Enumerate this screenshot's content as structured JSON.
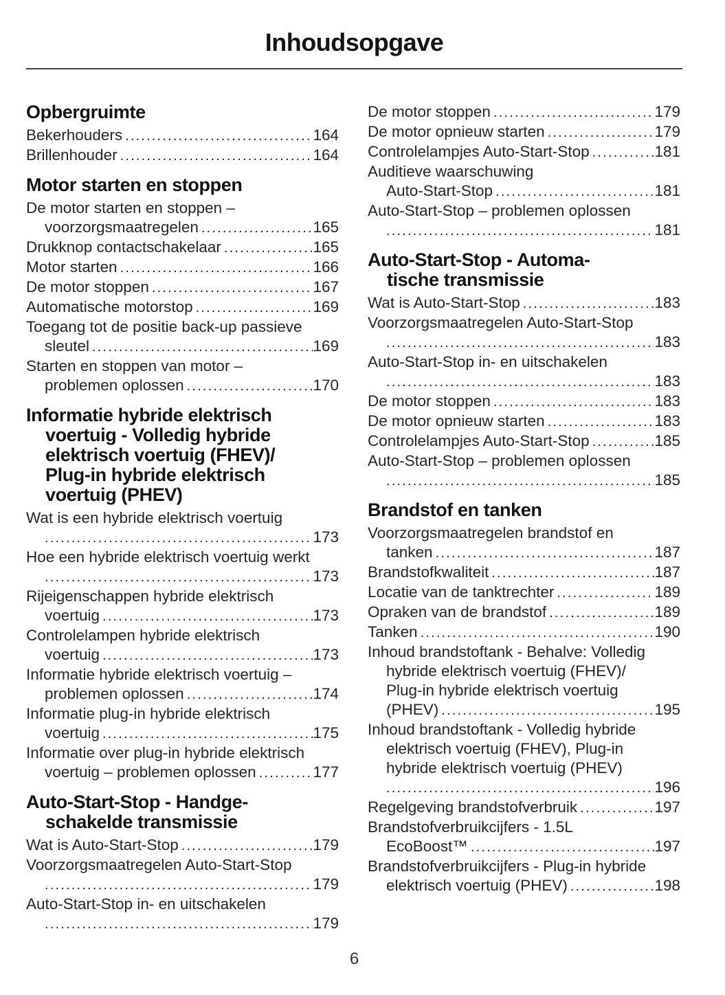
{
  "header": {
    "title": "Inhoudsopgave"
  },
  "footer": {
    "page_number": "6"
  },
  "colors": {
    "text": "#262626",
    "heading": "#141414",
    "rule": "#444444",
    "background": "#ffffff"
  },
  "toc": {
    "columns": [
      {
        "sections": [
          {
            "heading_lines": [
              "Opbergruimte"
            ],
            "entries": [
              {
                "lines": [
                  "Bekerhouders"
                ],
                "page": "164"
              },
              {
                "lines": [
                  "Brillenhouder"
                ],
                "page": "164"
              }
            ]
          },
          {
            "heading_lines": [
              "Motor starten en stoppen"
            ],
            "entries": [
              {
                "lines": [
                  "De motor starten en stoppen –",
                  "voorzorgsmaatregelen"
                ],
                "page": "165"
              },
              {
                "lines": [
                  "Drukknop contactschakelaar"
                ],
                "page": "165"
              },
              {
                "lines": [
                  "Motor starten"
                ],
                "page": "166"
              },
              {
                "lines": [
                  "De motor stoppen"
                ],
                "page": "167"
              },
              {
                "lines": [
                  "Automatische motorstop"
                ],
                "page": "169"
              },
              {
                "lines": [
                  "Toegang tot de positie back-up passieve",
                  "sleutel"
                ],
                "page": "169"
              },
              {
                "lines": [
                  "Starten en stoppen van motor –",
                  "problemen oplossen"
                ],
                "page": "170"
              }
            ]
          },
          {
            "heading_lines": [
              "Informatie hybride elektrisch",
              "voertuig - Volledig hybride",
              "elektrisch voertuig (FHEV)/",
              "Plug-in hybride elektrisch",
              "voertuig (PHEV)"
            ],
            "entries": [
              {
                "lines": [
                  "Wat is een hybride elektrisch voertuig",
                  ""
                ],
                "page": "173"
              },
              {
                "lines": [
                  "Hoe een hybride elektrisch voertuig werkt",
                  ""
                ],
                "page": "173"
              },
              {
                "lines": [
                  "Rijeigenschappen hybride elektrisch",
                  "voertuig"
                ],
                "page": "173"
              },
              {
                "lines": [
                  "Controlelampen hybride elektrisch",
                  "voertuig"
                ],
                "page": "173"
              },
              {
                "lines": [
                  "Informatie hybride elektrisch voertuig –",
                  "problemen oplossen"
                ],
                "page": "174"
              },
              {
                "lines": [
                  "Informatie plug-in hybride elektrisch",
                  "voertuig"
                ],
                "page": "175"
              },
              {
                "lines": [
                  "Informatie over plug-in hybride elektrisch",
                  "voertuig – problemen oplossen"
                ],
                "page": "177"
              }
            ]
          },
          {
            "heading_lines": [
              "Auto-Start-Stop - Handge-",
              "schakelde transmissie"
            ],
            "entries": [
              {
                "lines": [
                  "Wat is Auto-Start-Stop"
                ],
                "page": "179"
              },
              {
                "lines": [
                  "Voorzorgsmaatregelen Auto-Start-Stop",
                  ""
                ],
                "page": "179"
              },
              {
                "lines": [
                  "Auto-Start-Stop in- en uitschakelen",
                  ""
                ],
                "page": "179"
              }
            ]
          }
        ]
      },
      {
        "sections": [
          {
            "heading_lines": [],
            "entries": [
              {
                "lines": [
                  "De motor stoppen"
                ],
                "page": "179"
              },
              {
                "lines": [
                  "De motor opnieuw starten"
                ],
                "page": "179"
              },
              {
                "lines": [
                  "Controlelampjes Auto-Start-Stop"
                ],
                "page": "181"
              },
              {
                "lines": [
                  "Auditieve waarschuwing",
                  "Auto-Start-Stop"
                ],
                "page": "181"
              },
              {
                "lines": [
                  "Auto-Start-Stop – problemen oplossen",
                  ""
                ],
                "page": "181"
              }
            ]
          },
          {
            "heading_lines": [
              "Auto-Start-Stop - Automa-",
              "tische transmissie"
            ],
            "entries": [
              {
                "lines": [
                  "Wat is Auto-Start-Stop"
                ],
                "page": "183"
              },
              {
                "lines": [
                  "Voorzorgsmaatregelen Auto-Start-Stop",
                  ""
                ],
                "page": "183"
              },
              {
                "lines": [
                  "Auto-Start-Stop in- en uitschakelen",
                  ""
                ],
                "page": "183"
              },
              {
                "lines": [
                  "De motor stoppen"
                ],
                "page": "183"
              },
              {
                "lines": [
                  "De motor opnieuw starten"
                ],
                "page": "183"
              },
              {
                "lines": [
                  "Controlelampjes Auto-Start-Stop"
                ],
                "page": "185"
              },
              {
                "lines": [
                  "Auto-Start-Stop – problemen oplossen",
                  ""
                ],
                "page": "185"
              }
            ]
          },
          {
            "heading_lines": [
              "Brandstof en tanken"
            ],
            "entries": [
              {
                "lines": [
                  "Voorzorgsmaatregelen brandstof en",
                  "tanken"
                ],
                "page": "187"
              },
              {
                "lines": [
                  "Brandstofkwaliteit"
                ],
                "page": "187"
              },
              {
                "lines": [
                  "Locatie van de tanktrechter"
                ],
                "page": "189"
              },
              {
                "lines": [
                  "Opraken van de brandstof"
                ],
                "page": "189"
              },
              {
                "lines": [
                  "Tanken"
                ],
                "page": "190"
              },
              {
                "lines": [
                  "Inhoud brandstoftank - Behalve: Volledig",
                  "hybride elektrisch voertuig (FHEV)/",
                  "Plug-in hybride elektrisch voertuig",
                  "(PHEV)"
                ],
                "page": "195"
              },
              {
                "lines": [
                  "Inhoud brandstoftank - Volledig hybride",
                  "elektrisch voertuig (FHEV), Plug-in",
                  "hybride elektrisch voertuig (PHEV)",
                  ""
                ],
                "page": "196"
              },
              {
                "lines": [
                  "Regelgeving brandstofverbruik"
                ],
                "page": "197"
              },
              {
                "lines": [
                  "Brandstofverbruikcijfers - 1.5L",
                  "EcoBoost™"
                ],
                "page": "197"
              },
              {
                "lines": [
                  "Brandstofverbruikcijfers - Plug-in hybride",
                  "elektrisch voertuig (PHEV)"
                ],
                "page": "198"
              }
            ]
          }
        ]
      }
    ]
  }
}
